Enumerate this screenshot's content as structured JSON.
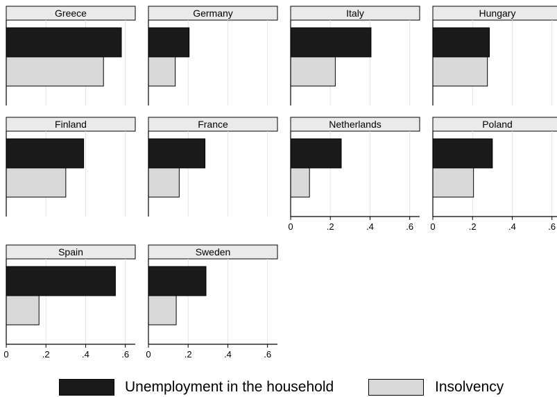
{
  "chart_data": {
    "type": "bar",
    "orientation": "horizontal",
    "layout": "small-multiples",
    "xlim": [
      0,
      0.65
    ],
    "xticks": [
      0,
      0.2,
      0.4,
      0.6
    ],
    "xtick_labels": [
      "0",
      ".2",
      ".4",
      ".6"
    ],
    "grid": true,
    "legend_position": "bottom",
    "series": [
      {
        "name": "Unemployment in the household",
        "color": "#1a1a1a"
      },
      {
        "name": "Insolvency",
        "color": "#d9d9d9"
      }
    ],
    "panels": [
      {
        "title": "Greece",
        "values": [
          0.58,
          0.49
        ]
      },
      {
        "title": "Germany",
        "values": [
          0.205,
          0.135
        ]
      },
      {
        "title": "Italy",
        "values": [
          0.405,
          0.225
        ]
      },
      {
        "title": "Hungary",
        "values": [
          0.285,
          0.275
        ]
      },
      {
        "title": "Finland",
        "values": [
          0.39,
          0.3
        ]
      },
      {
        "title": "France",
        "values": [
          0.285,
          0.155
        ]
      },
      {
        "title": "Netherlands",
        "values": [
          0.255,
          0.095
        ]
      },
      {
        "title": "Poland",
        "values": [
          0.3,
          0.205
        ]
      },
      {
        "title": "Spain",
        "values": [
          0.55,
          0.165
        ]
      },
      {
        "title": "Sweden",
        "values": [
          0.29,
          0.14
        ]
      }
    ]
  }
}
